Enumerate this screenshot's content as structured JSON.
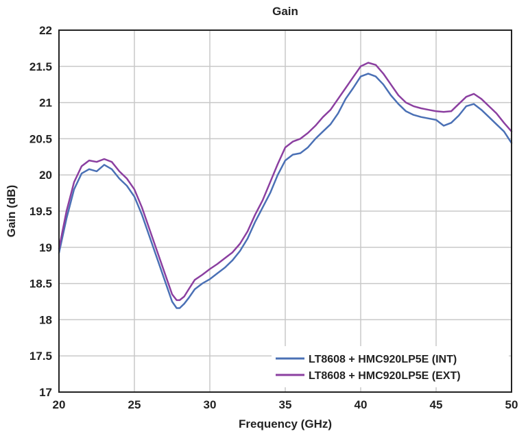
{
  "chart_data": {
    "type": "line",
    "title": "Gain",
    "xlabel": "Frequency (GHz)",
    "ylabel": "Gain (dB)",
    "xlim": [
      20,
      50
    ],
    "ylim": [
      17,
      22
    ],
    "xticks": [
      20,
      25,
      30,
      35,
      40,
      45,
      50
    ],
    "yticks": [
      17,
      17.5,
      18,
      18.5,
      19,
      19.5,
      20,
      20.5,
      21,
      21.5,
      22
    ],
    "xtick_labels": [
      "20",
      "25",
      "30",
      "35",
      "40",
      "45",
      "50"
    ],
    "ytick_labels": [
      "17",
      "17.5",
      "18",
      "18.5",
      "19",
      "19.5",
      "20",
      "20.5",
      "21",
      "21.5",
      "22"
    ],
    "grid": true,
    "legend_position": "bottom-right",
    "series": [
      {
        "name": "LT8608 + HMC920LP5E (INT)",
        "color": "#4a70b5",
        "x": [
          20,
          20.5,
          21,
          21.5,
          22,
          22.5,
          23,
          23.5,
          24,
          24.5,
          25,
          25.5,
          26,
          26.5,
          27,
          27.5,
          27.8,
          28,
          28.3,
          28.6,
          29,
          29.5,
          30,
          30.5,
          31,
          31.5,
          32,
          32.5,
          33,
          33.5,
          34,
          34.5,
          35,
          35.5,
          36,
          36.5,
          37,
          37.5,
          38,
          38.5,
          39,
          39.5,
          40,
          40.5,
          41,
          41.5,
          42,
          42.5,
          43,
          43.5,
          44,
          44.5,
          45,
          45.5,
          46,
          46.5,
          47,
          47.5,
          48,
          48.5,
          49,
          49.5,
          50
        ],
        "y": [
          18.92,
          19.4,
          19.8,
          20.02,
          20.08,
          20.05,
          20.14,
          20.08,
          19.95,
          19.85,
          19.7,
          19.45,
          19.15,
          18.85,
          18.55,
          18.25,
          18.16,
          18.16,
          18.22,
          18.3,
          18.42,
          18.5,
          18.56,
          18.64,
          18.72,
          18.82,
          18.95,
          19.12,
          19.35,
          19.55,
          19.75,
          20.0,
          20.2,
          20.28,
          20.3,
          20.38,
          20.5,
          20.6,
          20.7,
          20.85,
          21.05,
          21.2,
          21.36,
          21.4,
          21.36,
          21.25,
          21.1,
          20.98,
          20.88,
          20.83,
          20.8,
          20.78,
          20.76,
          20.68,
          20.72,
          20.82,
          20.95,
          20.98,
          20.9,
          20.8,
          20.7,
          20.6,
          20.44
        ]
      },
      {
        "name": "LT8608 + HMC920LP5E (EXT)",
        "color": "#8b3fa0",
        "x": [
          20,
          20.5,
          21,
          21.5,
          22,
          22.5,
          23,
          23.5,
          24,
          24.5,
          25,
          25.5,
          26,
          26.5,
          27,
          27.5,
          27.8,
          28,
          28.3,
          28.6,
          29,
          29.5,
          30,
          30.5,
          31,
          31.5,
          32,
          32.5,
          33,
          33.5,
          34,
          34.5,
          35,
          35.5,
          36,
          36.5,
          37,
          37.5,
          38,
          38.5,
          39,
          39.5,
          40,
          40.5,
          41,
          41.5,
          42,
          42.5,
          43,
          43.5,
          44,
          44.5,
          45,
          45.5,
          46,
          46.5,
          47,
          47.5,
          48,
          48.5,
          49,
          49.5,
          50
        ],
        "y": [
          18.98,
          19.5,
          19.9,
          20.12,
          20.2,
          20.18,
          20.22,
          20.18,
          20.05,
          19.95,
          19.8,
          19.55,
          19.25,
          18.95,
          18.65,
          18.35,
          18.27,
          18.27,
          18.32,
          18.42,
          18.55,
          18.62,
          18.7,
          18.77,
          18.85,
          18.93,
          19.05,
          19.22,
          19.45,
          19.65,
          19.9,
          20.15,
          20.38,
          20.46,
          20.5,
          20.58,
          20.68,
          20.8,
          20.9,
          21.05,
          21.2,
          21.35,
          21.5,
          21.55,
          21.52,
          21.4,
          21.25,
          21.1,
          21.0,
          20.95,
          20.92,
          20.9,
          20.88,
          20.87,
          20.88,
          20.98,
          21.08,
          21.12,
          21.05,
          20.95,
          20.85,
          20.72,
          20.6
        ]
      }
    ]
  }
}
